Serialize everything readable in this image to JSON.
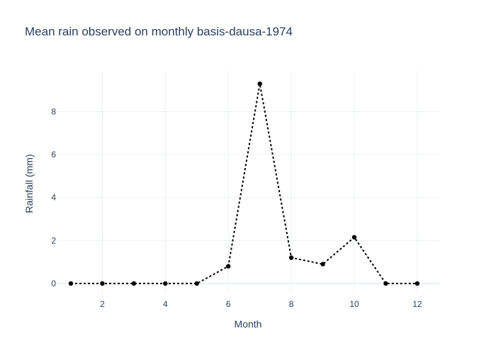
{
  "chart_data": {
    "type": "line",
    "title": "Mean rain observed on monthly basis-dausa-1974",
    "xlabel": "Month",
    "ylabel": "Rainfall (mm)",
    "x": [
      1,
      2,
      3,
      4,
      5,
      6,
      7,
      8,
      9,
      10,
      11,
      12
    ],
    "xlim": [
      0.55,
      12.7
    ],
    "ylim": [
      -0.5,
      9.9
    ],
    "x_ticks": [
      2,
      4,
      6,
      8,
      10,
      12
    ],
    "y_ticks": [
      0,
      2,
      4,
      6,
      8
    ],
    "grid": true,
    "legend": "none",
    "series": [
      {
        "values": [
          0,
          0,
          0,
          0,
          0,
          0.8,
          9.3,
          1.2,
          0.9,
          2.15,
          0,
          0
        ],
        "color": "#000000",
        "line_style": "dotted",
        "markers": true
      }
    ]
  }
}
